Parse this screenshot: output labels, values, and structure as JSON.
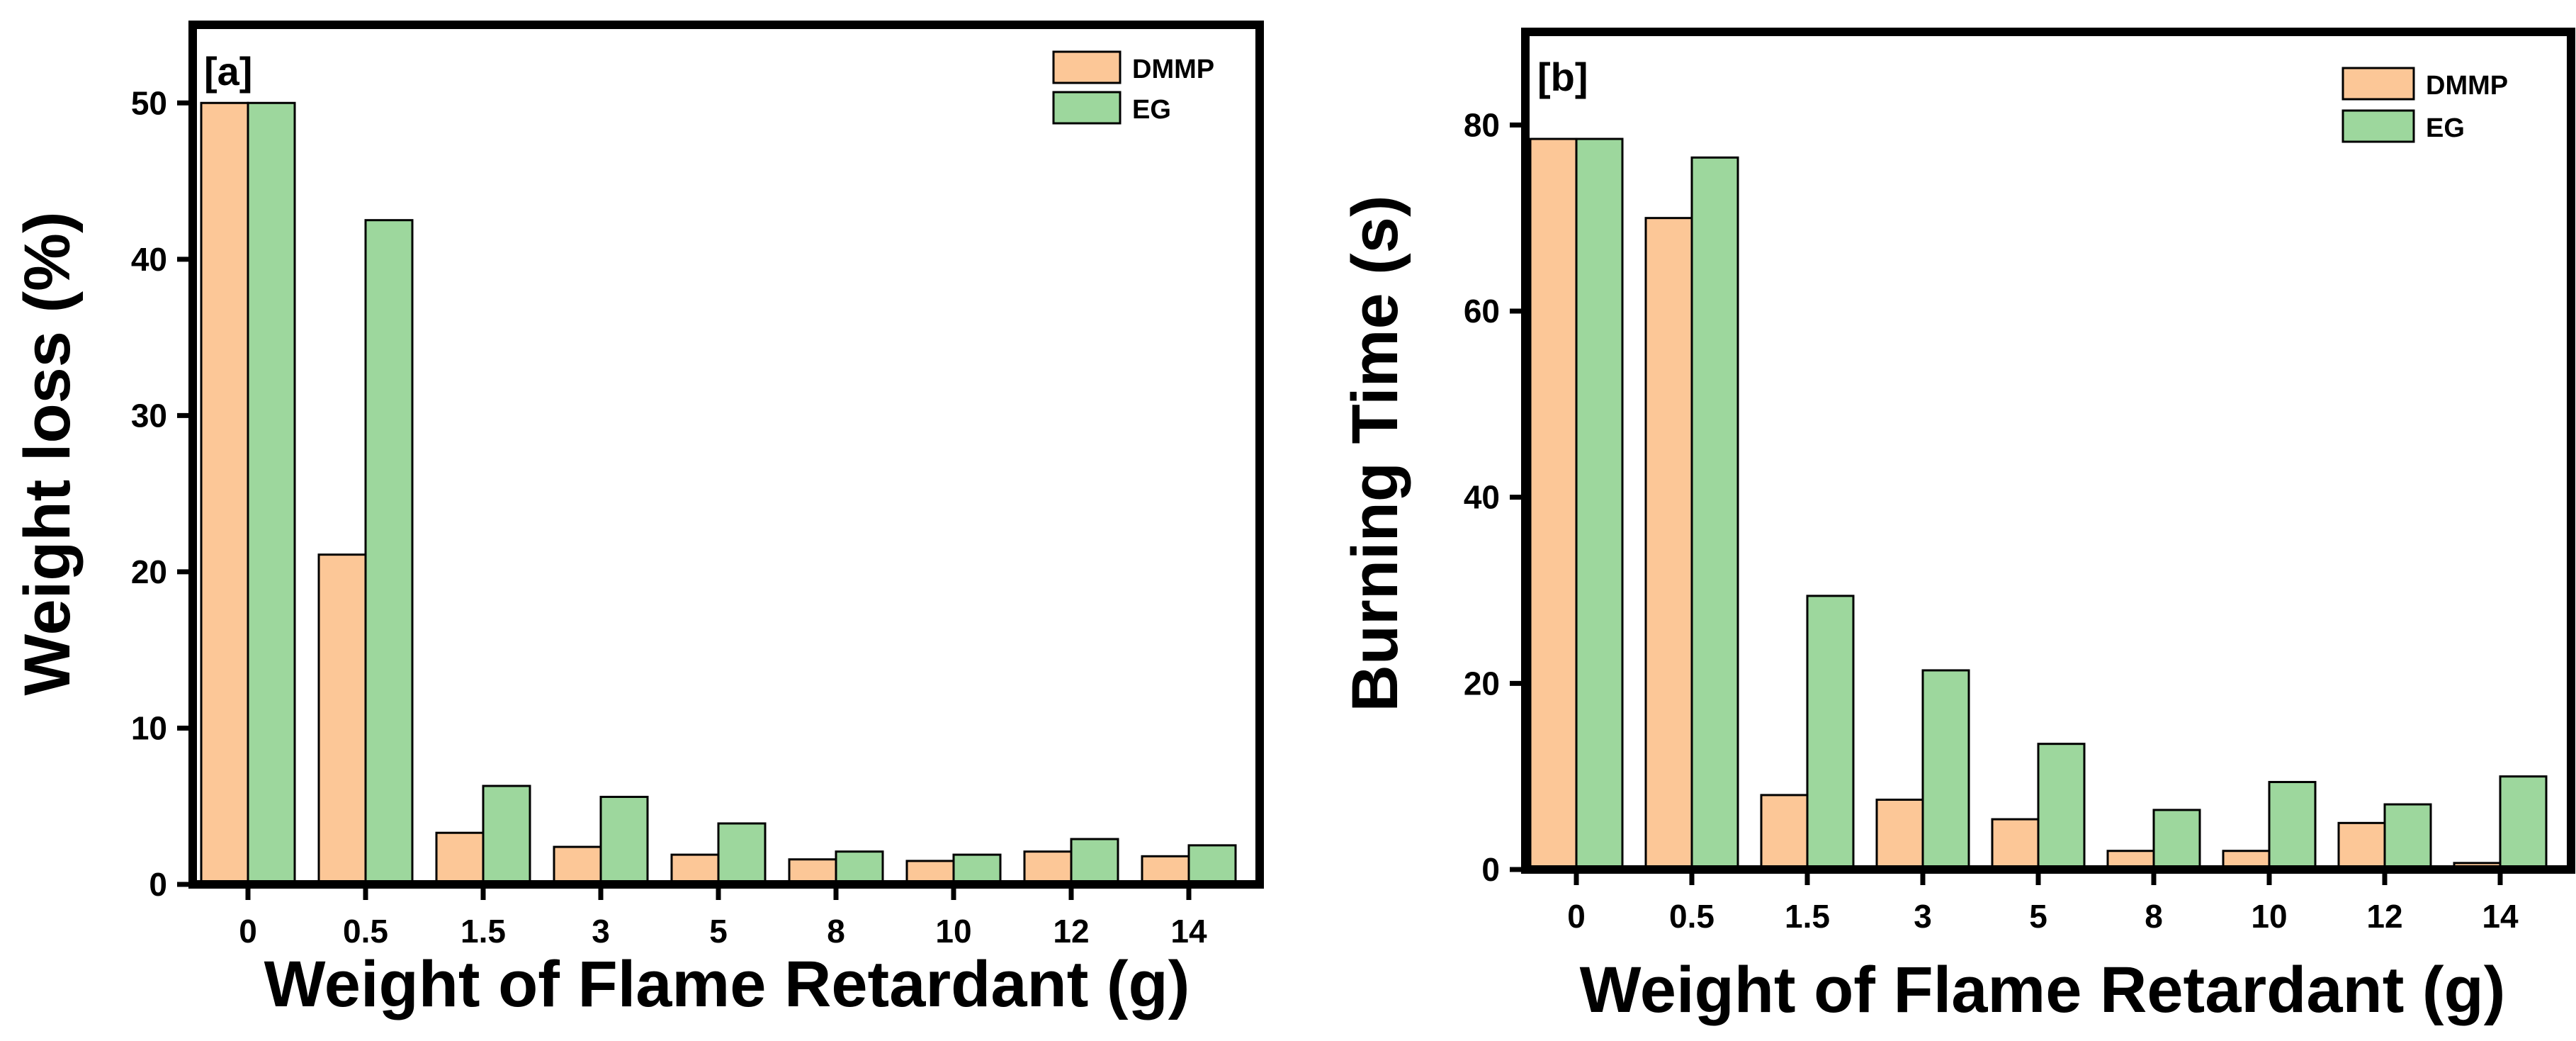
{
  "colors": {
    "DMMP": "#fcc797",
    "EG": "#9dd79d",
    "frame": "#000000"
  },
  "chart_data": [
    {
      "panel_label": "[a]",
      "type": "bar",
      "categories": [
        "0",
        "0.5",
        "1.5",
        "3",
        "5",
        "8",
        "10",
        "12",
        "14"
      ],
      "series": [
        {
          "name": "DMMP",
          "values": [
            50,
            21.1,
            3.3,
            2.4,
            1.9,
            1.6,
            1.5,
            2.1,
            1.8
          ]
        },
        {
          "name": "EG",
          "values": [
            50,
            42.5,
            6.3,
            5.6,
            3.9,
            2.1,
            1.9,
            2.9,
            2.5
          ]
        }
      ],
      "xlabel": "Weight of Flame Retardant (g)",
      "ylabel": "Weight loss (%)",
      "ylim": [
        0,
        55
      ],
      "yticks": [
        0,
        10,
        20,
        30,
        40,
        50
      ],
      "legend": "top-right",
      "grid": false
    },
    {
      "panel_label": "[b]",
      "type": "bar",
      "categories": [
        "0",
        "0.5",
        "1.5",
        "3",
        "5",
        "8",
        "10",
        "12",
        "14"
      ],
      "series": [
        {
          "name": "DMMP",
          "values": [
            78.5,
            70,
            8,
            7.5,
            5.4,
            2,
            2,
            5,
            0.7
          ]
        },
        {
          "name": "EG",
          "values": [
            78.5,
            76.5,
            29.4,
            21.4,
            13.5,
            6.4,
            9.4,
            7,
            10
          ]
        }
      ],
      "xlabel": "Weight of Flame Retardant (g)",
      "ylabel": "Burning Time (s)",
      "ylim": [
        0,
        90
      ],
      "yticks": [
        0,
        20,
        40,
        60,
        80
      ],
      "legend": "top-right",
      "grid": false
    }
  ]
}
